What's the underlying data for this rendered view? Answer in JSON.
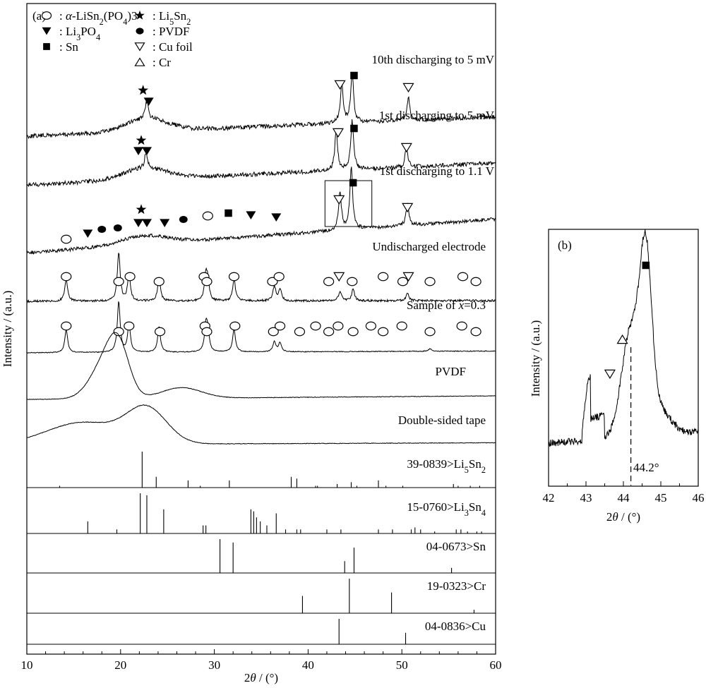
{
  "figure": {
    "panel_a": {
      "label": "(a)",
      "ylabel": "Intensity / (a.u.)",
      "xticks": [
        10,
        20,
        30,
        40,
        50,
        60
      ]
    },
    "panel_b": {
      "label": "(b)",
      "ylabel": "Intensity / (a.u.)",
      "xticks": [
        42,
        43,
        44,
        45,
        46
      ],
      "annotation": "44.2°"
    }
  },
  "chart_data": [
    {
      "type": "line",
      "panel": "a",
      "xlabel": "2θ / (°)",
      "ylabel": "Intensity / (a.u.)",
      "xlim": [
        10,
        60
      ],
      "legend": {
        "placement": "top-left",
        "entries": [
          {
            "marker": "circle-open",
            "label": "α-LiSn2(PO4)3"
          },
          {
            "marker": "star",
            "label": "Li5Sn2"
          },
          {
            "marker": "triangle-down-filled",
            "label": "Li3PO4"
          },
          {
            "marker": "circle-filled",
            "label": "PVDF"
          },
          {
            "marker": "square-filled",
            "label": "Sn"
          },
          {
            "marker": "triangle-down-open",
            "label": "Cu foil"
          },
          {
            "marker": "triangle-up-open",
            "label": "Cr"
          }
        ]
      },
      "series": [
        {
          "name": "10th discharging to 5 mV",
          "baseline": "rising amorphous hump",
          "peaks": [
            [
              22.8,
              0.35
            ],
            [
              43.6,
              0.75
            ],
            [
              44.7,
              1.0
            ],
            [
              50.7,
              0.45
            ]
          ],
          "markers": [
            {
              "x": 22.4,
              "symbol": "star"
            },
            {
              "x": 23.0,
              "symbol": "triangle-down-filled"
            },
            {
              "x": 43.4,
              "symbol": "triangle-down-open"
            },
            {
              "x": 44.9,
              "symbol": "square-filled"
            },
            {
              "x": 50.7,
              "symbol": "triangle-down-open"
            }
          ]
        },
        {
          "name": "1st discharging to 5 mV",
          "baseline": "rising amorphous hump",
          "peaks": [
            [
              22.7,
              0.3
            ],
            [
              43.0,
              0.8
            ],
            [
              44.7,
              1.0
            ],
            [
              50.5,
              0.4
            ]
          ],
          "markers": [
            {
              "x": 22.2,
              "symbol": "star"
            },
            {
              "x": 21.9,
              "symbol": "triangle-down-filled"
            },
            {
              "x": 22.8,
              "symbol": "triangle-down-filled"
            },
            {
              "x": 43.2,
              "symbol": "triangle-down-open"
            },
            {
              "x": 44.9,
              "symbol": "square-filled"
            },
            {
              "x": 50.5,
              "symbol": "triangle-down-open"
            }
          ]
        },
        {
          "name": "1st discharging to 1.1 V",
          "baseline": "rising amorphous hump",
          "peaks": [
            [
              43.4,
              0.6
            ],
            [
              44.6,
              1.0
            ],
            [
              50.6,
              0.35
            ]
          ],
          "boxed_region": [
            41.8,
            46.8
          ],
          "markers": [
            {
              "x": 14.2,
              "symbol": "circle-open"
            },
            {
              "x": 16.5,
              "symbol": "triangle-down-filled"
            },
            {
              "x": 18.0,
              "symbol": "circle-filled"
            },
            {
              "x": 19.7,
              "symbol": "circle-filled"
            },
            {
              "x": 22.2,
              "symbol": "star"
            },
            {
              "x": 21.9,
              "symbol": "triangle-down-filled"
            },
            {
              "x": 22.8,
              "symbol": "triangle-down-filled"
            },
            {
              "x": 24.7,
              "symbol": "triangle-down-filled"
            },
            {
              "x": 26.7,
              "symbol": "circle-filled"
            },
            {
              "x": 29.3,
              "symbol": "circle-open"
            },
            {
              "x": 31.5,
              "symbol": "square-filled"
            },
            {
              "x": 33.9,
              "symbol": "triangle-down-filled"
            },
            {
              "x": 36.6,
              "symbol": "triangle-down-filled"
            },
            {
              "x": 43.3,
              "symbol": "triangle-down-open"
            },
            {
              "x": 44.8,
              "symbol": "square-filled"
            },
            {
              "x": 50.6,
              "symbol": "triangle-down-open"
            }
          ]
        },
        {
          "name": "Undischarged electrode",
          "peaks": [
            [
              14.2,
              0.45
            ],
            [
              19.8,
              1.0
            ],
            [
              20.9,
              0.55
            ],
            [
              24.1,
              0.5
            ],
            [
              29.1,
              0.5
            ],
            [
              29.3,
              0.35
            ],
            [
              32.1,
              0.45
            ],
            [
              36.4,
              0.3
            ],
            [
              37.0,
              0.25
            ],
            [
              43.4,
              0.2
            ],
            [
              44.8,
              0.25
            ],
            [
              50.6,
              0.15
            ]
          ],
          "markers": [
            {
              "x": 14.2,
              "symbol": "circle-open"
            },
            {
              "x": 19.8,
              "symbol": "circle-open"
            },
            {
              "x": 21.0,
              "symbol": "circle-open"
            },
            {
              "x": 24.1,
              "symbol": "circle-open"
            },
            {
              "x": 28.9,
              "symbol": "circle-open"
            },
            {
              "x": 29.2,
              "symbol": "circle-open"
            },
            {
              "x": 32.1,
              "symbol": "circle-open"
            },
            {
              "x": 36.2,
              "symbol": "circle-open"
            },
            {
              "x": 36.9,
              "symbol": "circle-open"
            },
            {
              "x": 42.2,
              "symbol": "circle-open"
            },
            {
              "x": 43.3,
              "symbol": "triangle-down-open"
            },
            {
              "x": 44.7,
              "symbol": "circle-open"
            },
            {
              "x": 48.0,
              "symbol": "circle-open"
            },
            {
              "x": 50.1,
              "symbol": "circle-open"
            },
            {
              "x": 50.7,
              "symbol": "triangle-down-open"
            },
            {
              "x": 53.0,
              "symbol": "circle-open"
            },
            {
              "x": 56.5,
              "symbol": "circle-open"
            },
            {
              "x": 57.9,
              "symbol": "circle-open"
            }
          ]
        },
        {
          "name": "Sample of x=0.3",
          "peaks": [
            [
              14.2,
              0.45
            ],
            [
              19.8,
              1.0
            ],
            [
              20.9,
              0.55
            ],
            [
              24.1,
              0.5
            ],
            [
              29.1,
              0.5
            ],
            [
              29.3,
              0.35
            ],
            [
              32.1,
              0.45
            ],
            [
              36.4,
              0.2
            ],
            [
              37.0,
              0.18
            ],
            [
              53.0,
              0.05
            ]
          ],
          "markers": [
            {
              "x": 14.2,
              "symbol": "circle-open"
            },
            {
              "x": 19.8,
              "symbol": "circle-open"
            },
            {
              "x": 20.9,
              "symbol": "circle-open"
            },
            {
              "x": 24.2,
              "symbol": "circle-open"
            },
            {
              "x": 29.0,
              "symbol": "circle-open"
            },
            {
              "x": 29.2,
              "symbol": "circle-open"
            },
            {
              "x": 32.2,
              "symbol": "circle-open"
            },
            {
              "x": 36.3,
              "symbol": "circle-open"
            },
            {
              "x": 37.0,
              "symbol": "circle-open"
            },
            {
              "x": 39.1,
              "symbol": "circle-open"
            },
            {
              "x": 40.8,
              "symbol": "circle-open"
            },
            {
              "x": 42.2,
              "symbol": "circle-open"
            },
            {
              "x": 43.2,
              "symbol": "circle-open"
            },
            {
              "x": 44.8,
              "symbol": "circle-open"
            },
            {
              "x": 46.7,
              "symbol": "circle-open"
            },
            {
              "x": 48.0,
              "symbol": "circle-open"
            },
            {
              "x": 50.0,
              "symbol": "circle-open"
            },
            {
              "x": 53.0,
              "symbol": "circle-open"
            },
            {
              "x": 56.4,
              "symbol": "circle-open"
            },
            {
              "x": 57.9,
              "symbol": "circle-open"
            }
          ]
        },
        {
          "name": "PVDF",
          "peaks": [
            [
              18.3,
              0.8
            ],
            [
              19.8,
              1.0
            ],
            [
              26.5,
              0.25
            ]
          ]
        },
        {
          "name": "Double-sided tape",
          "peaks": [
            [
              16.0,
              0.65
            ],
            [
              22.8,
              1.0
            ]
          ]
        }
      ],
      "reference_patterns": [
        {
          "name": "39-0839>Li5Sn2",
          "lines": [
            [
              13.5,
              0.05
            ],
            [
              22.3,
              1.0
            ],
            [
              23.8,
              0.3
            ],
            [
              27.2,
              0.2
            ],
            [
              28.5,
              0.05
            ],
            [
              31.6,
              0.2
            ],
            [
              38.2,
              0.3
            ],
            [
              38.8,
              0.25
            ],
            [
              40.8,
              0.05
            ],
            [
              41.0,
              0.05
            ],
            [
              43.1,
              0.1
            ],
            [
              44.6,
              0.15
            ],
            [
              45.2,
              0.05
            ],
            [
              47.5,
              0.2
            ],
            [
              48.3,
              0.05
            ],
            [
              50.1,
              0.05
            ],
            [
              55.5,
              0.1
            ],
            [
              56.0,
              0.05
            ],
            [
              57.3,
              0.05
            ],
            [
              58.3,
              0.05
            ]
          ]
        },
        {
          "name": "15-0760>Li3Sn4",
          "lines": [
            [
              16.5,
              0.3
            ],
            [
              19.6,
              0.1
            ],
            [
              22.1,
              1.0
            ],
            [
              22.8,
              0.95
            ],
            [
              24.6,
              0.6
            ],
            [
              28.8,
              0.2
            ],
            [
              29.1,
              0.2
            ],
            [
              33.9,
              0.6
            ],
            [
              34.2,
              0.55
            ],
            [
              34.5,
              0.4
            ],
            [
              34.9,
              0.3
            ],
            [
              35.6,
              0.2
            ],
            [
              36.6,
              0.5
            ],
            [
              37.6,
              0.1
            ],
            [
              38.8,
              0.1
            ],
            [
              39.2,
              0.1
            ],
            [
              42.0,
              0.1
            ],
            [
              43.5,
              0.1
            ],
            [
              47.5,
              0.1
            ],
            [
              49.0,
              0.1
            ],
            [
              51.0,
              0.1
            ],
            [
              51.4,
              0.15
            ],
            [
              52.0,
              0.1
            ],
            [
              53.5,
              0.05
            ],
            [
              55.8,
              0.1
            ],
            [
              56.3,
              0.1
            ],
            [
              57.0,
              0.05
            ],
            [
              58.0,
              0.05
            ],
            [
              58.5,
              0.05
            ]
          ]
        },
        {
          "name": "04-0673>Sn",
          "lines": [
            [
              30.6,
              1.0
            ],
            [
              32.0,
              0.9
            ],
            [
              43.9,
              0.35
            ],
            [
              44.9,
              0.75
            ],
            [
              55.3,
              0.15
            ]
          ]
        },
        {
          "name": "19-0323>Cr",
          "lines": [
            [
              39.4,
              0.5
            ],
            [
              44.4,
              1.0
            ],
            [
              48.9,
              0.6
            ],
            [
              57.7,
              0.1
            ]
          ]
        },
        {
          "name": "04-0836>Cu",
          "lines": [
            [
              43.3,
              1.0
            ],
            [
              50.4,
              0.45
            ]
          ]
        }
      ]
    },
    {
      "type": "line",
      "panel": "b",
      "xlabel": "2θ / (°)",
      "ylabel": "Intensity / (a.u.)",
      "xlim": [
        42,
        46
      ],
      "series": [
        {
          "name": "",
          "peaks": [
            [
              43.1,
              0.5
            ],
            [
              44.2,
              0.65
            ],
            [
              44.6,
              1.0
            ]
          ],
          "markers": [
            {
              "x": 43.3,
              "symbol": "triangle-down-open"
            },
            {
              "x": 44.2,
              "symbol": "triangle-up-open"
            },
            {
              "x": 44.6,
              "symbol": "square-filled"
            }
          ]
        }
      ],
      "reference_line_x": 44.2
    }
  ]
}
